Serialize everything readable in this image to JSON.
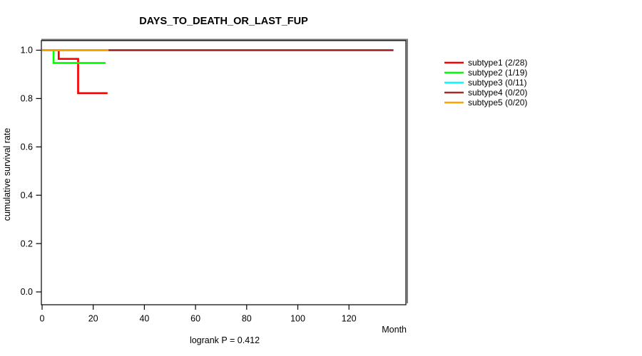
{
  "figure": {
    "title": "DAYS_TO_DEATH_OR_LAST_FUP",
    "xlabel": "Month",
    "ylabel": "cumulative survival rate",
    "annotation": "logrank P = 0.412"
  },
  "chart_data": {
    "type": "line",
    "variant": "kaplan-meier-step",
    "title": "DAYS_TO_DEATH_OR_LAST_FUP",
    "xlabel": "Month",
    "ylabel": "cumulative survival rate",
    "annotation": "logrank P = 0.412",
    "xlim": [
      0,
      142
    ],
    "ylim": [
      0,
      1.0
    ],
    "grid": false,
    "legend_position": "right-outside",
    "xticks": [
      0,
      20,
      40,
      60,
      80,
      100,
      120
    ],
    "xtick_labels": [
      "0",
      "20",
      "40",
      "60",
      "80",
      "100",
      "120"
    ],
    "yticks": [
      0.0,
      0.2,
      0.4,
      0.6,
      0.8,
      1.0
    ],
    "ytick_labels": [
      "0.0",
      "0.2",
      "0.4",
      "0.6",
      "0.8",
      "1.0"
    ],
    "axis_color": "#000000",
    "box_shadow_color": "#808080",
    "series": [
      {
        "name": "subtype1 (2/28)",
        "color": "#FF0000",
        "points": [
          [
            0,
            1.0
          ],
          [
            6.5,
            1.0
          ],
          [
            6.5,
            0.964
          ],
          [
            14.1,
            0.964
          ],
          [
            14.1,
            0.822
          ],
          [
            25.6,
            0.822
          ]
        ]
      },
      {
        "name": "subtype2 (1/19)",
        "color": "#00FF00",
        "points": [
          [
            0,
            1.0
          ],
          [
            4.5,
            1.0
          ],
          [
            4.5,
            0.947
          ],
          [
            24.8,
            0.947
          ]
        ]
      },
      {
        "name": "subtype3 (0/11)",
        "color": "#00FFFF",
        "points": [
          [
            0,
            1.0
          ],
          [
            25.0,
            1.0
          ]
        ]
      },
      {
        "name": "subtype4 (0/20)",
        "color": "#A52A2A",
        "points": [
          [
            0,
            1.0
          ],
          [
            137.4,
            1.0
          ]
        ]
      },
      {
        "name": "subtype5 (0/20)",
        "color": "#FFA500",
        "points": [
          [
            0,
            1.0
          ],
          [
            26.0,
            1.0
          ]
        ]
      }
    ]
  }
}
